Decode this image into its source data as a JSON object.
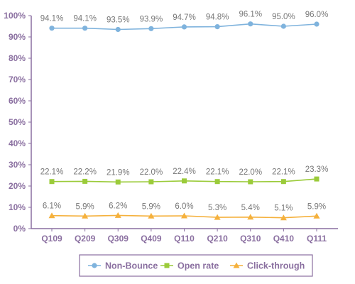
{
  "chart_data": {
    "type": "line",
    "categories": [
      "Q109",
      "Q209",
      "Q309",
      "Q409",
      "Q110",
      "Q210",
      "Q310",
      "Q410",
      "Q111"
    ],
    "ylim": [
      0,
      100
    ],
    "yticks": [
      "0%",
      "10%",
      "20%",
      "30%",
      "40%",
      "50%",
      "60%",
      "70%",
      "80%",
      "90%",
      "100%"
    ],
    "legend_position": "bottom",
    "grid": false,
    "series": [
      {
        "name": "Non-Bounce",
        "color": "#7fb3dd",
        "marker": "circle",
        "values": [
          94.1,
          94.1,
          93.5,
          93.9,
          94.7,
          94.8,
          96.1,
          95.0,
          96.0
        ],
        "labels": [
          "94.1%",
          "94.1%",
          "93.5%",
          "93.9%",
          "94.7%",
          "94.8%",
          "96.1%",
          "95.0%",
          "96.0%"
        ]
      },
      {
        "name": "Open rate",
        "color": "#9bcb3a",
        "marker": "square",
        "values": [
          22.1,
          22.2,
          21.9,
          22.0,
          22.4,
          22.1,
          22.0,
          22.1,
          23.3
        ],
        "labels": [
          "22.1%",
          "22.2%",
          "21.9%",
          "22.0%",
          "22.4%",
          "22.1%",
          "22.0%",
          "22.1%",
          "23.3%"
        ]
      },
      {
        "name": "Click-through",
        "color": "#f5b13d",
        "marker": "triangle",
        "values": [
          6.1,
          5.9,
          6.2,
          5.9,
          6.0,
          5.3,
          5.4,
          5.1,
          5.9
        ],
        "labels": [
          "6.1%",
          "5.9%",
          "6.2%",
          "5.9%",
          "6.0%",
          "5.3%",
          "5.4%",
          "5.1%",
          "5.9%"
        ]
      }
    ],
    "axis_color": "#8a6fa0",
    "legend_border_color": "#8a6fa0"
  }
}
